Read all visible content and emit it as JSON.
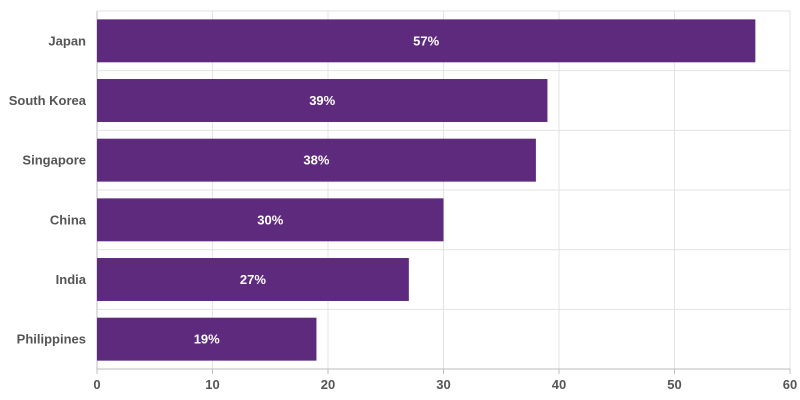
{
  "chart_data": {
    "type": "bar",
    "orientation": "horizontal",
    "categories": [
      "Japan",
      "South Korea",
      "Singapore",
      "China",
      "India",
      "Philippines"
    ],
    "values": [
      57,
      39,
      38,
      30,
      27,
      19
    ],
    "data_labels": [
      "57%",
      "39%",
      "38%",
      "30%",
      "27%",
      "19%"
    ],
    "title": "",
    "xlabel": "",
    "ylabel": "",
    "xlim": [
      0,
      60
    ],
    "x_ticks": [
      0,
      10,
      20,
      30,
      40,
      50,
      60
    ],
    "x_tick_labels": [
      "0",
      "10",
      "20",
      "30",
      "40",
      "50",
      "60"
    ],
    "grid": true,
    "legend": "none",
    "bar_color": "#5e2a7e"
  }
}
